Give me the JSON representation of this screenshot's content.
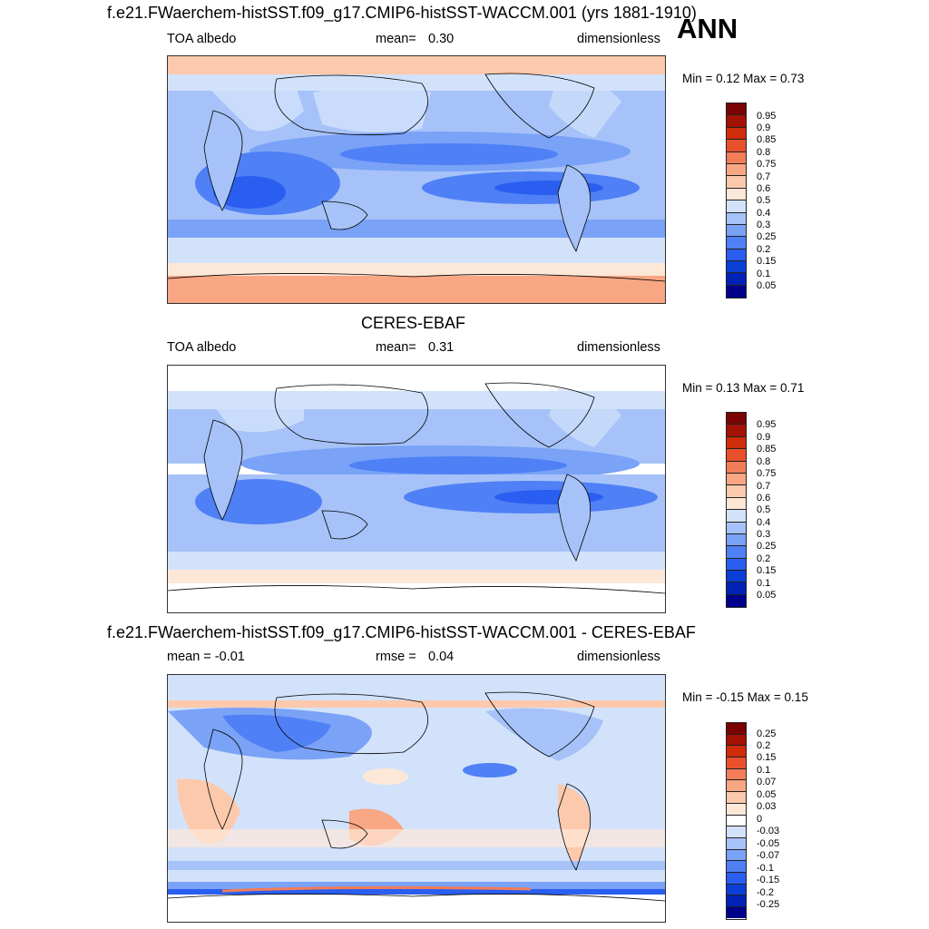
{
  "season": "ANN",
  "panels": [
    {
      "title": "f.e21.FWaerchem-histSST.f09_g17.CMIP6-histSST-WACCM.001 (yrs 1881-1910)",
      "left_label": "TOA albedo",
      "stat_label": "mean=",
      "stat_value": "0.30",
      "unit": "dimensionless",
      "minmax": "Min =   0.12 Max =   0.73",
      "colorbar_ticks": [
        "0.95",
        "0.9",
        "0.85",
        "0.8",
        "0.75",
        "0.7",
        "0.6",
        "0.5",
        "0.4",
        "0.3",
        "0.25",
        "0.2",
        "0.15",
        "0.1",
        "0.05"
      ]
    },
    {
      "title": "CERES-EBAF",
      "left_label": "TOA albedo",
      "stat_label": "mean=",
      "stat_value": "0.31",
      "unit": "dimensionless",
      "minmax": "Min =   0.13 Max =   0.71",
      "colorbar_ticks": [
        "0.95",
        "0.9",
        "0.85",
        "0.8",
        "0.75",
        "0.7",
        "0.6",
        "0.5",
        "0.4",
        "0.3",
        "0.25",
        "0.2",
        "0.15",
        "0.1",
        "0.05"
      ]
    },
    {
      "title": "f.e21.FWaerchem-histSST.f09_g17.CMIP6-histSST-WACCM.001 - CERES-EBAF",
      "left_label": "mean =  -0.01",
      "stat_label": "rmse =",
      "stat_value": "0.04",
      "unit": "dimensionless",
      "minmax": "Min =  -0.15 Max =   0.15",
      "colorbar_ticks": [
        "0.25",
        "0.2",
        "0.15",
        "0.1",
        "0.07",
        "0.05",
        "0.03",
        "0",
        "-0.03",
        "-0.05",
        "-0.07",
        "-0.1",
        "-0.15",
        "-0.2",
        "-0.25"
      ]
    }
  ],
  "colors": {
    "abs_scale": [
      "#00008b",
      "#0022b4",
      "#0a3fd6",
      "#2a5ef0",
      "#4f80f5",
      "#7aa2f7",
      "#a6c2f8",
      "#d2e2fb",
      "#fde8d8",
      "#fcc9ac",
      "#f8a683",
      "#f27d58",
      "#e9512d",
      "#cf2c0c",
      "#a31205",
      "#7a0403"
    ],
    "diff_scale": [
      "#00008b",
      "#0022b4",
      "#0a3fd6",
      "#2a5ef0",
      "#4f80f5",
      "#7aa2f7",
      "#a6c2f8",
      "#d2e2fb",
      "#ffffff",
      "#fde8d8",
      "#fcc9ac",
      "#f8a683",
      "#f27d58",
      "#e9512d",
      "#cf2c0c",
      "#a31205",
      "#7a0403"
    ]
  }
}
